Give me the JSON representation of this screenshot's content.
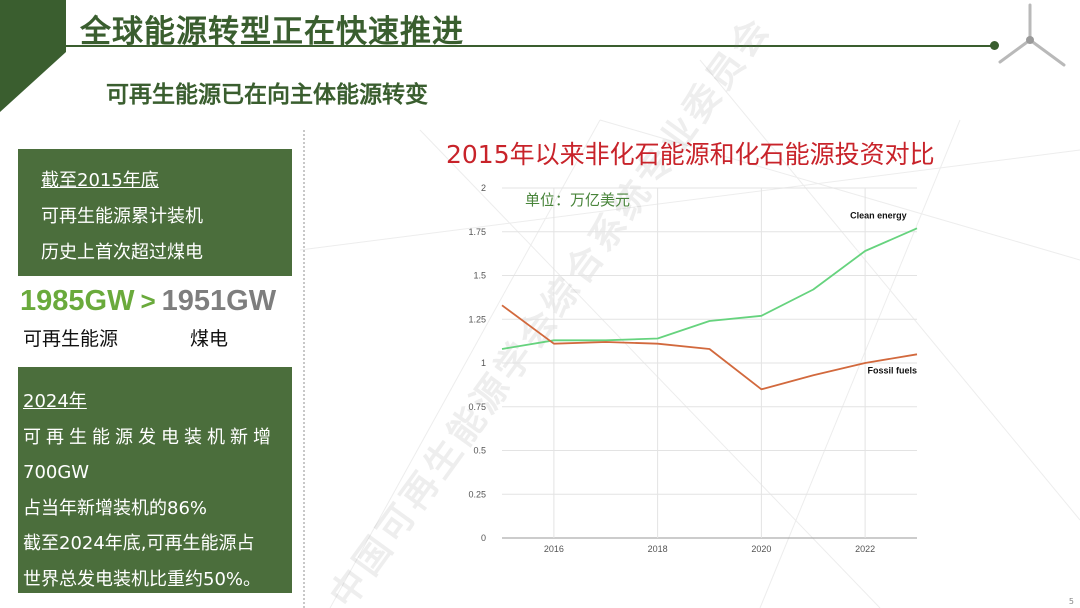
{
  "slide": {
    "title": "全球能源转型正在快速推进",
    "subtitle": "可再生能源已在向主体能源转变",
    "watermark": "中国可再生能源学会综合系统专业委员会",
    "page_number": "5",
    "accent_color": "#4b6e3c",
    "title_color": "#3a5e2f"
  },
  "panel_top": {
    "line1": "截至2015年底",
    "line2": "可再生能源累计装机",
    "line3": "历史上首次超过煤电"
  },
  "comparison": {
    "left_value": "1985GW",
    "operator": ">",
    "right_value": "1951GW",
    "left_label": "可再生能源",
    "right_label": "煤电"
  },
  "panel_bottom": {
    "year": "2024年",
    "line1": "可再生能源发电装机新增",
    "line2": "700GW",
    "line3": "占当年新增装机的86%",
    "line4": "截至2024年底,可再生能源占",
    "line5": "世界总发电装机比重约50%。"
  },
  "chart_data": {
    "type": "line",
    "title": "2015年以来非化石能源和化石能源投资对比",
    "unit_label": "单位：万亿美元",
    "x": [
      2015,
      2016,
      2017,
      2018,
      2019,
      2020,
      2021,
      2022,
      2023
    ],
    "x_ticks": [
      "2016",
      "2018",
      "2020",
      "2022"
    ],
    "y_ticks": [
      "0",
      "0.25",
      "0.5",
      "0.75",
      "1",
      "1.25",
      "1.5",
      "1.75",
      "2"
    ],
    "ylim": [
      0,
      2
    ],
    "xlim": [
      2015,
      2023
    ],
    "grid": true,
    "series": [
      {
        "name": "Clean energy",
        "color": "#66d37e",
        "values": [
          1.08,
          1.13,
          1.13,
          1.14,
          1.24,
          1.27,
          1.42,
          1.64,
          1.77
        ]
      },
      {
        "name": "Fossil fuels",
        "color": "#d2693d",
        "values": [
          1.33,
          1.11,
          1.12,
          1.11,
          1.08,
          0.85,
          0.93,
          1.0,
          1.05
        ]
      }
    ]
  }
}
